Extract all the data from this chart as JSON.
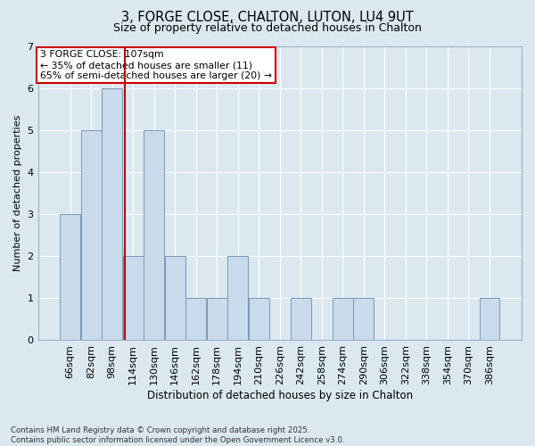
{
  "title1": "3, FORGE CLOSE, CHALTON, LUTON, LU4 9UT",
  "title2": "Size of property relative to detached houses in Chalton",
  "xlabel": "Distribution of detached houses by size in Chalton",
  "ylabel": "Number of detached properties",
  "categories": [
    "66sqm",
    "82sqm",
    "98sqm",
    "114sqm",
    "130sqm",
    "146sqm",
    "162sqm",
    "178sqm",
    "194sqm",
    "210sqm",
    "226sqm",
    "242sqm",
    "258sqm",
    "274sqm",
    "290sqm",
    "306sqm",
    "322sqm",
    "338sqm",
    "354sqm",
    "370sqm",
    "386sqm"
  ],
  "values": [
    3,
    5,
    6,
    2,
    5,
    2,
    1,
    1,
    2,
    1,
    0,
    1,
    0,
    1,
    1,
    0,
    0,
    0,
    0,
    0,
    1
  ],
  "bar_color": "#c9daea",
  "bar_edge_color": "#7799bb",
  "background_color": "#dce8f0",
  "grid_color": "#ffffff",
  "red_line_x": 2.62,
  "annotation_text": "3 FORGE CLOSE: 107sqm\n← 35% of detached houses are smaller (11)\n65% of semi-detached houses are larger (20) →",
  "annotation_box_color": "#ffffff",
  "annotation_box_edge": "#cc0000",
  "ylim": [
    0,
    7
  ],
  "yticks": [
    0,
    1,
    2,
    3,
    4,
    5,
    6,
    7
  ],
  "footer": "Contains HM Land Registry data © Crown copyright and database right 2025.\nContains public sector information licensed under the Open Government Licence v3.0."
}
